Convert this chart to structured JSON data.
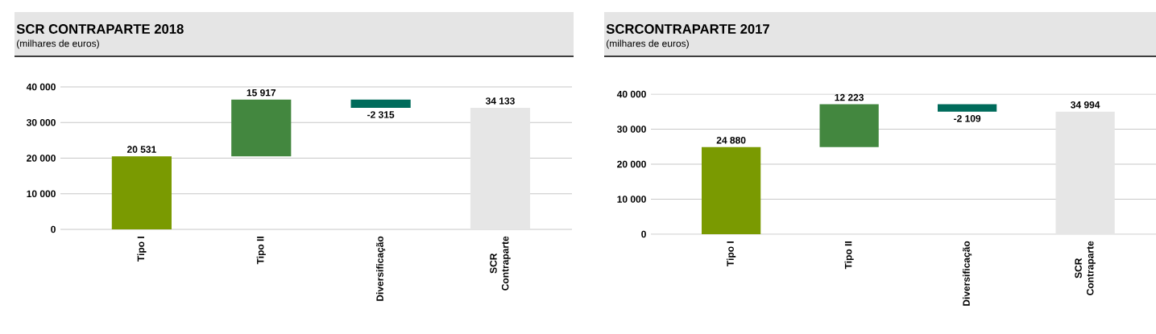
{
  "chart_data": [
    {
      "type": "bar",
      "title": "SCR CONTRAPARTE 2018",
      "subtitle": "(milhares de euros)",
      "categories": [
        "Tipo I",
        "Tipo II",
        "Diversificação",
        "SCR Contraparte"
      ],
      "values": [
        20531,
        15917,
        -2315,
        34133
      ],
      "base": [
        0,
        20531,
        36448,
        0
      ],
      "colors": [
        "#7a9a01",
        "#43873f",
        "#006b5b",
        "#e6e6e6"
      ],
      "value_labels": [
        "20 531",
        "15 917",
        "-2 315",
        "34 133"
      ],
      "ylim": [
        0,
        40000
      ],
      "yticks": [
        {
          "value": 0,
          "label": "0"
        },
        {
          "value": 10000,
          "label": "10 000"
        },
        {
          "value": 20000,
          "label": "20 000"
        },
        {
          "value": 30000,
          "label": "30 000"
        },
        {
          "value": 40000,
          "label": "40 000"
        }
      ],
      "grid": "y"
    },
    {
      "type": "bar",
      "title": "SCRCONTRAPARTE 2017",
      "subtitle": "(milhares de euros)",
      "categories": [
        "Tipo I",
        "Tipo II",
        "Diversificação",
        "SCR Contraparte"
      ],
      "values": [
        24880,
        12223,
        -2109,
        34994
      ],
      "base": [
        0,
        24880,
        37103,
        0
      ],
      "colors": [
        "#7a9a01",
        "#43873f",
        "#006b5b",
        "#e6e6e6"
      ],
      "value_labels": [
        "24 880",
        "12 223",
        "-2 109",
        "34 994"
      ],
      "ylim": [
        0,
        40000
      ],
      "yticks": [
        {
          "value": 0,
          "label": "0"
        },
        {
          "value": 10000,
          "label": "10 000"
        },
        {
          "value": 20000,
          "label": "20 000"
        },
        {
          "value": 30000,
          "label": "30 000"
        },
        {
          "value": 40000,
          "label": "40 000"
        }
      ],
      "grid": "y"
    }
  ]
}
